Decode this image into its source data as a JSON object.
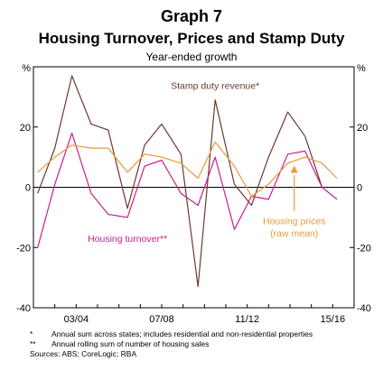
{
  "header": {
    "graph_number": "Graph 7",
    "title": "Housing Turnover, Prices and Stamp Duty",
    "subtitle": "Year-ended growth"
  },
  "chart_data": {
    "type": "line",
    "y_unit_left": "%",
    "y_unit_right": "%",
    "ylim": [
      -40,
      40
    ],
    "yticks": [
      -40,
      -20,
      0,
      20
    ],
    "ytick_labels": [
      "-40",
      "-20",
      "0",
      "20"
    ],
    "xlim": [
      2002.0,
      2017.0
    ],
    "xticks": [
      {
        "pos": 2004.0,
        "label": "03/04"
      },
      {
        "pos": 2008.0,
        "label": "07/08"
      },
      {
        "pos": 2012.0,
        "label": "11/12"
      },
      {
        "pos": 2016.0,
        "label": "15/16"
      }
    ],
    "grid": false,
    "colors": {
      "stamp": "#6b3a30",
      "turnover": "#c8208a",
      "prices": "#e89a3c"
    },
    "series": [
      {
        "name": "Stamp duty revenue*",
        "key": "stamp",
        "x": [
          2002.2,
          2003.0,
          2003.8,
          2004.7,
          2005.5,
          2006.4,
          2007.2,
          2008.0,
          2008.9,
          2009.7,
          2010.5,
          2011.4,
          2012.2,
          2013.0,
          2013.9,
          2014.7,
          2015.5
        ],
        "y": [
          -2,
          13,
          37,
          21,
          19,
          -7,
          14,
          21,
          11,
          -33,
          29,
          1,
          -6,
          10,
          25,
          17,
          0
        ]
      },
      {
        "name": "Housing turnover**",
        "key": "turnover",
        "x": [
          2002.2,
          2003.0,
          2003.8,
          2004.7,
          2005.5,
          2006.4,
          2007.2,
          2008.0,
          2008.9,
          2009.7,
          2010.5,
          2011.4,
          2012.2,
          2013.0,
          2013.9,
          2014.7,
          2015.5,
          2016.2
        ],
        "y": [
          -20,
          1,
          18,
          -2,
          -9,
          -10,
          7,
          9,
          -2,
          -6,
          10,
          -14,
          -3,
          -4,
          11,
          12,
          0,
          -4
        ]
      },
      {
        "name": "Housing prices (raw mean)",
        "key": "prices",
        "x": [
          2002.2,
          2003.0,
          2003.8,
          2004.7,
          2005.5,
          2006.4,
          2007.2,
          2008.0,
          2008.9,
          2009.7,
          2010.5,
          2011.4,
          2012.2,
          2013.0,
          2013.9,
          2014.7,
          2015.5,
          2016.2
        ],
        "y": [
          5,
          10,
          14,
          13,
          13,
          5,
          11,
          10,
          8,
          3,
          15,
          7,
          -3,
          1,
          8,
          10,
          8,
          3
        ]
      }
    ],
    "labels": {
      "stamp": "Stamp duty revenue*",
      "turnover": "Housing turnover**",
      "prices_line1": "Housing prices",
      "prices_line2": "(raw mean)"
    }
  },
  "notes": [
    {
      "marker": "*",
      "text": "Annual sum across states; includes residential and non-residential properties"
    },
    {
      "marker": "**",
      "text": "Annual rolling sum of number of housing sales"
    }
  ],
  "sources": "Sources: ABS; CoreLogic; RBA"
}
